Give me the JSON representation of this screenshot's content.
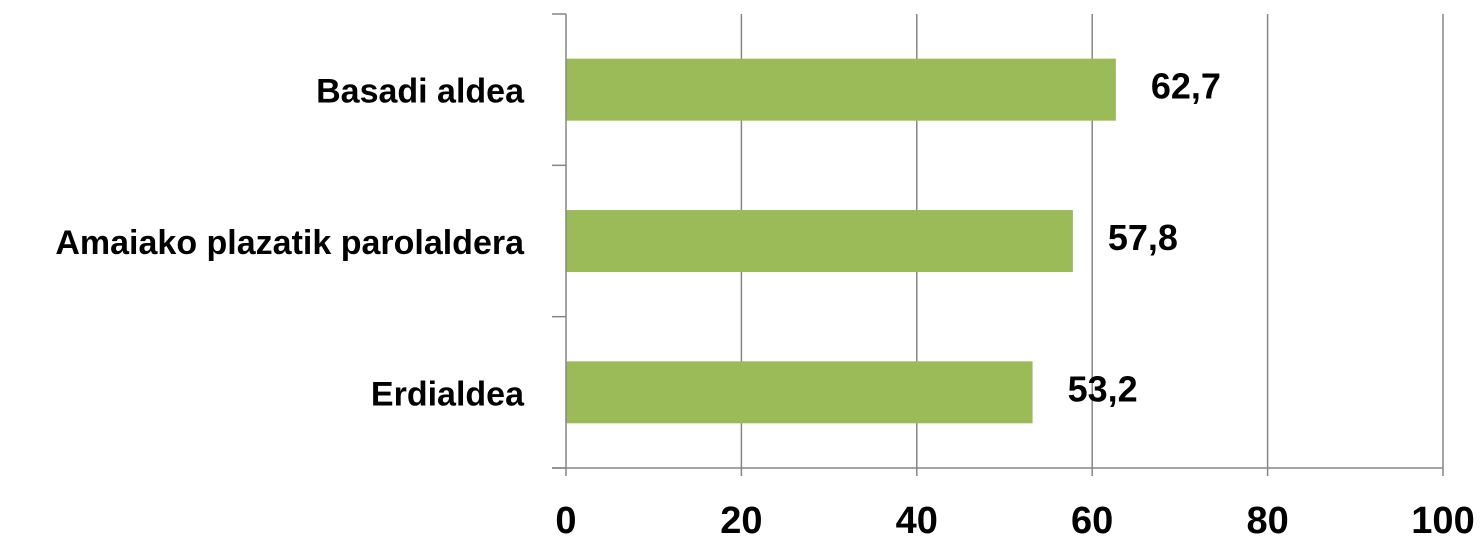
{
  "chart_data": {
    "type": "bar",
    "orientation": "horizontal",
    "categories": [
      "Basadi aldea",
      "Amaiako plazatik parolaldera",
      "Erdialdea"
    ],
    "values": [
      62.7,
      57.8,
      53.2
    ],
    "value_labels": [
      "62,7",
      "57,8",
      "53,2"
    ],
    "x_ticks": [
      0,
      20,
      40,
      60,
      80,
      100
    ],
    "x_tick_labels": [
      "0",
      "20",
      "40",
      "60",
      "80",
      "100"
    ],
    "xlim": [
      0,
      100
    ],
    "title": "",
    "xlabel": "",
    "ylabel": "",
    "grid": "vertical",
    "legend": "none",
    "bar_color": "#9BBB59",
    "grid_color": "#868686"
  }
}
